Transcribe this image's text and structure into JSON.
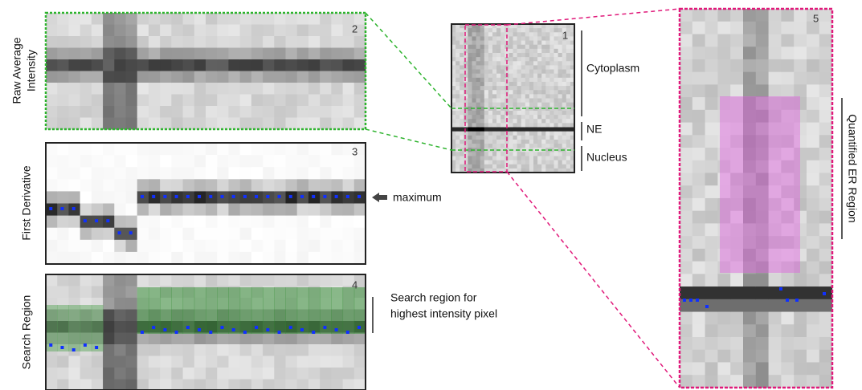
{
  "panels": [
    {
      "number": "1"
    },
    {
      "number": "2"
    },
    {
      "number": "3"
    },
    {
      "number": "4"
    },
    {
      "number": "5"
    }
  ],
  "row_labels": {
    "raw": [
      "Raw Average",
      "Intensity"
    ],
    "derivative": "First Derivative",
    "search": "Search Region"
  },
  "regions": {
    "cytoplasm": "Cytoplasm",
    "ne": "NE",
    "nucleus": "Nucleus"
  },
  "maximum": "maximum",
  "search_note": [
    "Search region for",
    "highest intensity pixel"
  ],
  "er_label": "Quantified ER Region"
}
